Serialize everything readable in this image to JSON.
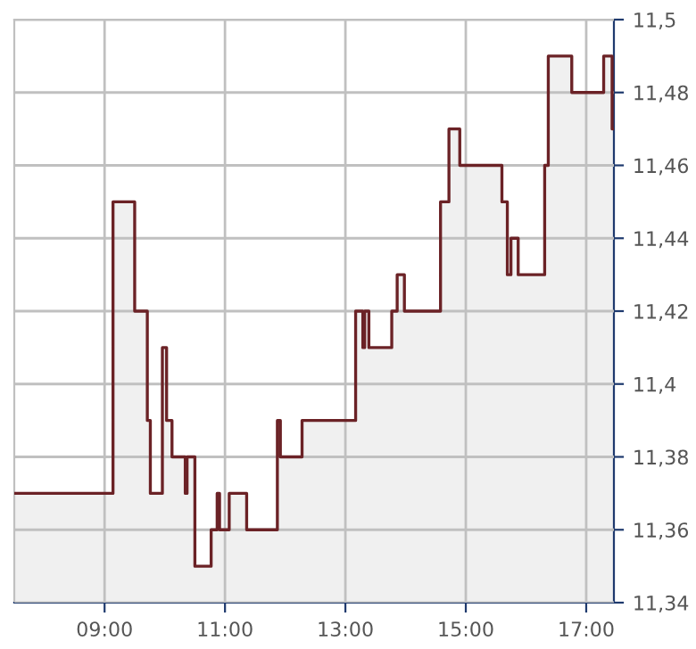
{
  "chart_data": {
    "type": "step",
    "x": [
      7.5,
      9.14,
      9.5,
      9.71,
      9.76,
      9.96,
      10.03,
      10.12,
      10.34,
      10.37,
      10.5,
      10.77,
      10.87,
      10.91,
      11.07,
      11.36,
      11.87,
      11.92,
      12.28,
      13.17,
      13.29,
      13.32,
      13.39,
      13.77,
      13.86,
      13.98,
      14.58,
      14.72,
      14.9,
      15.6,
      15.69,
      15.75,
      15.87,
      16.31,
      16.37,
      16.76,
      17.29,
      17.43,
      17.46
    ],
    "series": [
      {
        "type": "area",
        "color": "#f0f0f0",
        "values": [
          11.37,
          11.45,
          11.42,
          11.39,
          11.37,
          11.41,
          11.39,
          11.38,
          11.37,
          11.38,
          11.35,
          11.36,
          11.37,
          11.36,
          11.37,
          11.36,
          11.39,
          11.38,
          11.39,
          11.42,
          11.41,
          11.42,
          11.41,
          11.42,
          11.43,
          11.42,
          11.45,
          11.47,
          11.46,
          11.45,
          11.43,
          11.44,
          11.43,
          11.46,
          11.49,
          11.48,
          11.49,
          11.47,
          11.47
        ]
      },
      {
        "color": "#6b2226",
        "values": [
          11.37,
          11.45,
          11.42,
          11.39,
          11.37,
          11.41,
          11.39,
          11.38,
          11.37,
          11.38,
          11.35,
          11.36,
          11.37,
          11.36,
          11.37,
          11.36,
          11.39,
          11.38,
          11.39,
          11.42,
          11.41,
          11.42,
          11.41,
          11.42,
          11.43,
          11.42,
          11.45,
          11.47,
          11.46,
          11.45,
          11.43,
          11.44,
          11.43,
          11.46,
          11.49,
          11.48,
          11.49,
          11.47,
          11.47
        ]
      }
    ],
    "xlim": [
      7.5,
      17.46
    ],
    "xticks": [
      {
        "value": 9,
        "label": "09:00"
      },
      {
        "value": 11,
        "label": "11:00"
      },
      {
        "value": 13,
        "label": "13:00"
      },
      {
        "value": 15,
        "label": "15:00"
      },
      {
        "value": 17,
        "label": "17:00"
      }
    ],
    "ylim": [
      11.34,
      11.5
    ],
    "yticks": [
      {
        "value": 11.34,
        "label": "11,34"
      },
      {
        "value": 11.36,
        "label": "11,36"
      },
      {
        "value": 11.38,
        "label": "11,38"
      },
      {
        "value": 11.4,
        "label": "11,4"
      },
      {
        "value": 11.42,
        "label": "11,42"
      },
      {
        "value": 11.44,
        "label": "11,44"
      },
      {
        "value": 11.46,
        "label": "11,46"
      },
      {
        "value": 11.48,
        "label": "11,48"
      },
      {
        "value": 11.5,
        "label": "11,5"
      }
    ],
    "grid": true
  }
}
